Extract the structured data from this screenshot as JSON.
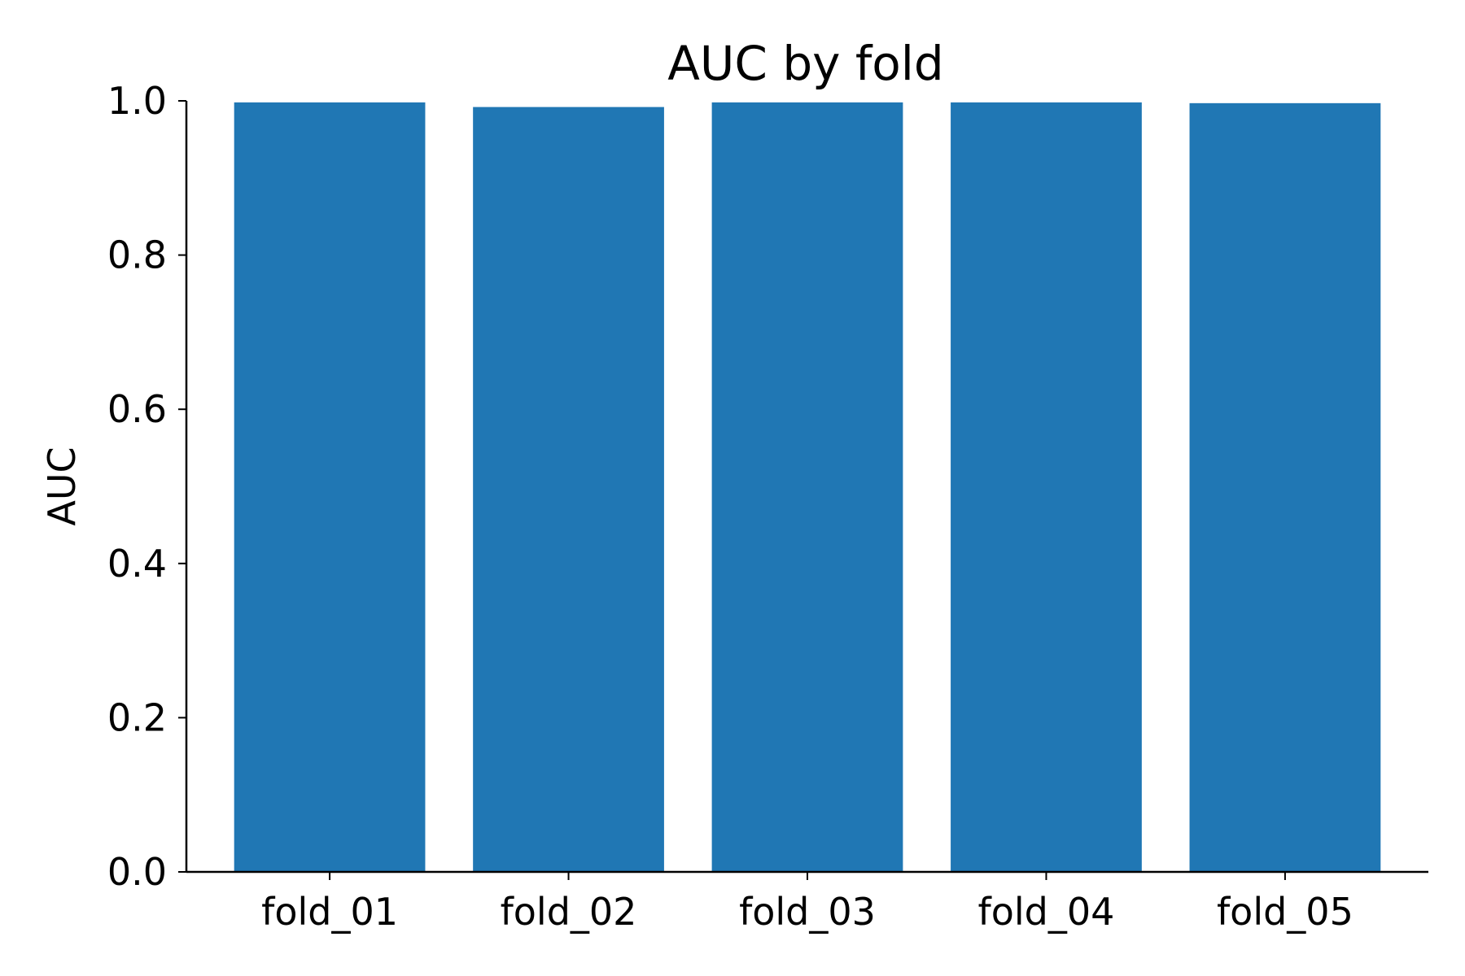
{
  "chart_data": {
    "type": "bar",
    "title": "AUC by fold",
    "xlabel": "",
    "ylabel": "AUC",
    "categories": [
      "fold_01",
      "fold_02",
      "fold_03",
      "fold_04",
      "fold_05"
    ],
    "values": [
      0.998,
      0.992,
      0.998,
      0.998,
      0.997
    ],
    "ylim": [
      0,
      1.0
    ],
    "yticks": [
      0.0,
      0.2,
      0.4,
      0.6,
      0.8,
      1.0
    ],
    "ytick_labels": [
      "0.0",
      "0.2",
      "0.4",
      "0.6",
      "0.8",
      "1.0"
    ],
    "grid": false,
    "bar_color": "#2077b4"
  }
}
